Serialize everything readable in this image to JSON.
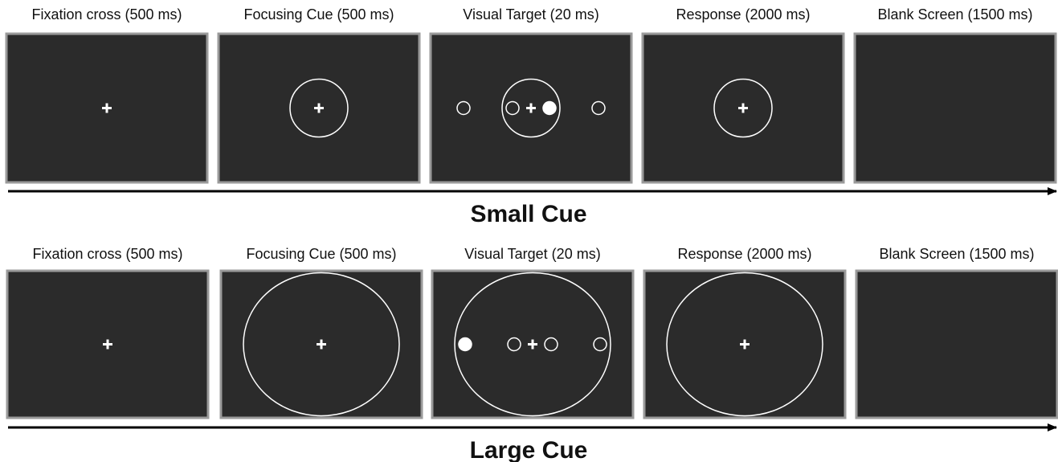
{
  "rows": [
    {
      "label": "Small Cue",
      "panels": [
        {
          "title": "Fixation cross (500 ms)"
        },
        {
          "title": "Focusing Cue (500 ms)"
        },
        {
          "title": "Visual Target (20 ms)"
        },
        {
          "title": "Response (2000 ms)"
        },
        {
          "title": "Blank Screen (1500 ms)"
        }
      ]
    },
    {
      "label": "Large Cue",
      "panels": [
        {
          "title": "Fixation cross (500 ms)"
        },
        {
          "title": "Focusing Cue (500 ms)"
        },
        {
          "title": "Visual Target (20 ms)"
        },
        {
          "title": "Response (2000 ms)"
        },
        {
          "title": "Blank Screen (1500 ms)"
        }
      ]
    }
  ]
}
